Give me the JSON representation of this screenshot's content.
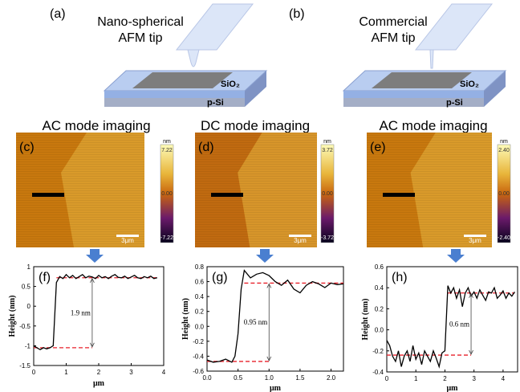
{
  "schematics": [
    {
      "label": "(a)",
      "tip": [
        "Nano-spherical",
        "AFM tip"
      ],
      "oxide": "SiO₂",
      "substrate": "p-Si"
    },
    {
      "label": "(b)",
      "tip": [
        "Commercial",
        "AFM tip"
      ],
      "oxide": "SiO₂",
      "substrate": "p-Si"
    }
  ],
  "images": [
    {
      "title": "AC mode imaging",
      "label": "(c)",
      "unit": "nm",
      "colorbar": [
        "7.22",
        "0.00",
        "-7.22"
      ],
      "scale_bar": "3μm"
    },
    {
      "title": "DC mode imaging",
      "label": "(d)",
      "unit": "nm",
      "colorbar": [
        "3.72",
        "0.00",
        "-3.72"
      ],
      "scale_bar": "3μm"
    },
    {
      "title": "AC mode imaging",
      "label": "(e)",
      "unit": "nm",
      "colorbar": [
        "2.40",
        "0.00",
        "-2.40"
      ],
      "scale_bar": "3μm"
    }
  ],
  "chart_data": [
    {
      "type": "line",
      "label": "(f)",
      "xlabel": "μm",
      "ylabel": "Height (nm)",
      "color": "#000000",
      "x": [
        0,
        0.1,
        0.2,
        0.3,
        0.4,
        0.5,
        0.6,
        0.65,
        0.7,
        0.8,
        0.9,
        1.0,
        1.1,
        1.2,
        1.3,
        1.4,
        1.5,
        1.6,
        1.7,
        1.8,
        1.9,
        2.0,
        2.1,
        2.2,
        2.3,
        2.4,
        2.5,
        2.6,
        2.7,
        2.8,
        2.9,
        3.0,
        3.1,
        3.2,
        3.3,
        3.4,
        3.5,
        3.6,
        3.7,
        3.8
      ],
      "values": [
        -1.0,
        -1.05,
        -1.1,
        -1.05,
        -1.08,
        -1.05,
        -1.0,
        -0.2,
        0.6,
        0.75,
        0.7,
        0.8,
        0.72,
        0.78,
        0.7,
        0.75,
        0.8,
        0.72,
        0.76,
        0.74,
        0.7,
        0.78,
        0.72,
        0.75,
        0.7,
        0.76,
        0.8,
        0.73,
        0.72,
        0.76,
        0.7,
        0.74,
        0.78,
        0.72,
        0.7,
        0.75,
        0.72,
        0.76,
        0.7,
        0.72
      ],
      "xlim": [
        0,
        4
      ],
      "xticks": [
        0,
        1,
        2,
        3,
        4
      ],
      "ylim": [
        -1.5,
        1
      ],
      "yticks": [
        -1.5,
        -1,
        -0.5,
        0,
        0.5,
        1
      ],
      "levels": [
        {
          "y": -1.05,
          "xlim": [
            0,
            1.8
          ]
        },
        {
          "y": 0.72,
          "xlim": [
            0.7,
            3.8
          ]
        }
      ],
      "level_color": "#e8202a",
      "annotation": "1.9 nm"
    },
    {
      "type": "line",
      "label": "(g)",
      "xlabel": "μm",
      "ylabel": "Height (nm)",
      "color": "#000000",
      "x": [
        0,
        0.1,
        0.2,
        0.3,
        0.4,
        0.45,
        0.5,
        0.55,
        0.6,
        0.7,
        0.8,
        0.9,
        1.0,
        1.1,
        1.2,
        1.3,
        1.4,
        1.5,
        1.6,
        1.7,
        1.8,
        1.9,
        2.0,
        2.1,
        2.2
      ],
      "values": [
        -0.45,
        -0.48,
        -0.47,
        -0.44,
        -0.48,
        -0.4,
        -0.1,
        0.5,
        0.75,
        0.65,
        0.7,
        0.72,
        0.68,
        0.6,
        0.55,
        0.62,
        0.5,
        0.45,
        0.55,
        0.6,
        0.57,
        0.52,
        0.58,
        0.56,
        0.57
      ],
      "xlim": [
        0,
        2.2
      ],
      "xticks": [
        {
          "value": 0,
          "label": "0.0"
        },
        {
          "value": 0.5,
          "label": "0.5"
        },
        {
          "value": 1,
          "label": "1.0"
        },
        {
          "value": 1.5,
          "label": "1.5"
        },
        {
          "value": 2,
          "label": "2.0"
        }
      ],
      "ylim": [
        -0.6,
        0.8
      ],
      "yticks": [
        -0.6,
        -0.4,
        -0.2,
        {
          "value": 0,
          "label": "0.0"
        },
        0.2,
        0.4,
        0.6,
        0.8
      ],
      "levels": [
        {
          "y": -0.47,
          "xlim": [
            0,
            1.0
          ]
        },
        {
          "y": 0.58,
          "xlim": [
            0.6,
            2.2
          ]
        }
      ],
      "level_color": "#e8202a",
      "annotation": "0.95 nm"
    },
    {
      "type": "line",
      "label": "(h)",
      "xlabel": "μm",
      "ylabel": "Height (nm)",
      "color": "#000000",
      "x": [
        0,
        0.1,
        0.2,
        0.3,
        0.4,
        0.5,
        0.6,
        0.7,
        0.8,
        0.9,
        1.0,
        1.1,
        1.2,
        1.3,
        1.4,
        1.5,
        1.6,
        1.7,
        1.8,
        1.9,
        2.0,
        2.1,
        2.2,
        2.3,
        2.4,
        2.5,
        2.6,
        2.7,
        2.8,
        2.9,
        3.0,
        3.1,
        3.2,
        3.3,
        3.4,
        3.5,
        3.6,
        3.7,
        3.8,
        3.9,
        4.0,
        4.1,
        4.2,
        4.3,
        4.4
      ],
      "values": [
        -0.1,
        -0.15,
        -0.25,
        -0.3,
        -0.2,
        -0.35,
        -0.25,
        -0.2,
        -0.3,
        -0.15,
        -0.28,
        -0.22,
        -0.33,
        -0.2,
        -0.25,
        -0.3,
        -0.2,
        -0.27,
        -0.35,
        -0.22,
        -0.2,
        0.42,
        0.35,
        0.4,
        0.3,
        0.38,
        0.22,
        0.35,
        0.4,
        0.32,
        0.36,
        0.3,
        0.38,
        0.33,
        0.28,
        0.36,
        0.35,
        0.4,
        0.3,
        0.33,
        0.37,
        0.3,
        0.35,
        0.32,
        0.36
      ],
      "xlim": [
        0,
        4.5
      ],
      "xticks": [
        0,
        1,
        2,
        3,
        4
      ],
      "ylim": [
        -0.4,
        0.6
      ],
      "yticks": [
        -0.4,
        -0.2,
        {
          "value": 0,
          "label": "0.0"
        },
        0.2,
        0.4,
        0.6
      ],
      "levels": [
        {
          "y": -0.24,
          "xlim": [
            0,
            2.9
          ]
        },
        {
          "y": 0.35,
          "xlim": [
            2.1,
            4.4
          ]
        }
      ],
      "level_color": "#e8202a",
      "annotation": "0.6 nm"
    }
  ]
}
